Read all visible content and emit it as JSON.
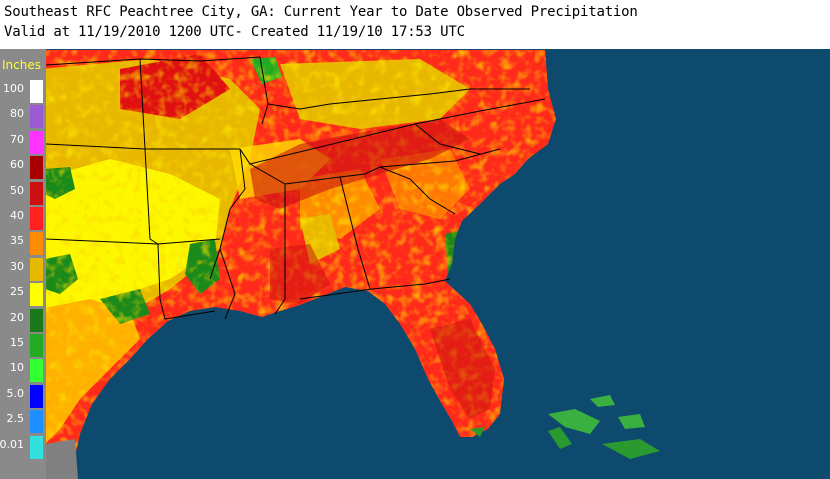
{
  "header": {
    "title": "Southeast RFC Peachtree City, GA: Current Year to Date Observed Precipitation",
    "subtitle": "Valid at 11/19/2010 1200 UTC- Created 11/19/10 17:53 UTC"
  },
  "legend": {
    "units": "Inches",
    "items": [
      {
        "label": "100",
        "color": "#ffffff"
      },
      {
        "label": "80",
        "color": "#9a5bd4"
      },
      {
        "label": "70",
        "color": "#ff33ff"
      },
      {
        "label": "60",
        "color": "#a80000"
      },
      {
        "label": "50",
        "color": "#cc1010"
      },
      {
        "label": "40",
        "color": "#ff2020"
      },
      {
        "label": "35",
        "color": "#ff8c00"
      },
      {
        "label": "30",
        "color": "#e6b800"
      },
      {
        "label": "25",
        "color": "#ffff00"
      },
      {
        "label": "20",
        "color": "#1a7a1a"
      },
      {
        "label": "15",
        "color": "#22aa22"
      },
      {
        "label": "10",
        "color": "#33ff33"
      },
      {
        "label": "5.0",
        "color": "#0000ff"
      },
      {
        "label": "2.5",
        "color": "#1e90ff"
      },
      {
        "label": "0.01",
        "color": "#33e0e0"
      }
    ]
  },
  "map": {
    "ocean_color": "#0e4a6e",
    "land_dominant_color": "#ff2020",
    "boundary_color": "#000000"
  }
}
